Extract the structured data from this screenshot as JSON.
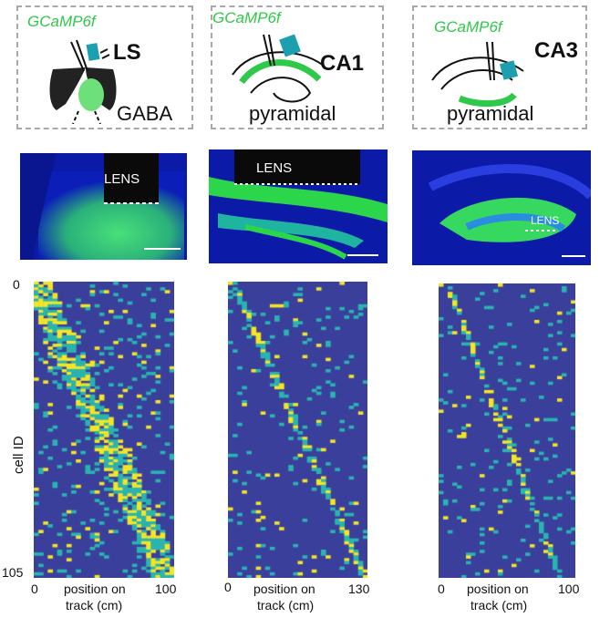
{
  "panels": [
    {
      "indicator": "GCaMP6f",
      "region": "LS",
      "cell_type": "GABA",
      "lens_label": "LENS",
      "x_ticks": [
        "0",
        "100"
      ],
      "x_label_line1": "position on",
      "x_label_line2": "track (cm)"
    },
    {
      "indicator": "GCaMP6f",
      "region": "CA1",
      "cell_type": "pyramidal",
      "lens_label": "LENS",
      "x_ticks": [
        "0",
        "130"
      ],
      "x_label_line1": "position on",
      "x_label_line2": "track (cm)"
    },
    {
      "indicator": "GCaMP6f",
      "region": "CA3",
      "cell_type": "pyramidal",
      "lens_label": "LENS",
      "x_ticks": [
        "0",
        "100"
      ],
      "x_label_line1": "position on",
      "x_label_line2": "track (cm)"
    }
  ],
  "heatmap": {
    "y_label": "cell ID",
    "y_ticks": [
      "0",
      "105"
    ],
    "n_cells": 105,
    "colors": {
      "low": "#3a3f9c",
      "mid": "#2ab5b0",
      "high": "#f5e625"
    }
  },
  "colors": {
    "indicator_green": "#2fc94a",
    "tissue_blue": "#1020c8",
    "tissue_green": "#38d85a"
  }
}
